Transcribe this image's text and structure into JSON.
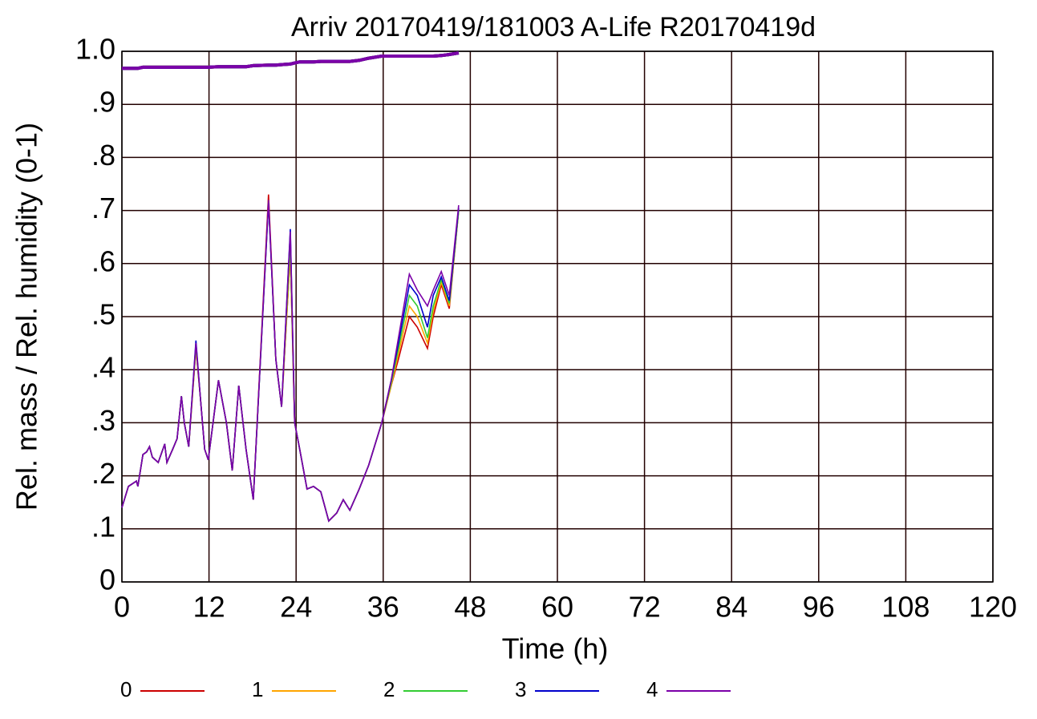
{
  "chart_data": {
    "type": "line",
    "title": "Arriv 20170419/181003 A-Life R20170419d",
    "x_label": "Time (h)",
    "y_label": "Rel. mass / Rel. humidity (0-1)",
    "xlim": [
      0,
      120
    ],
    "xticks": [
      0,
      12,
      24,
      36,
      48,
      60,
      72,
      84,
      96,
      108,
      120
    ],
    "ylim": [
      0,
      1
    ],
    "yticks": [
      0,
      {
        "value": 0.1,
        "label": ".1"
      },
      {
        "value": 0.2,
        "label": ".2"
      },
      {
        "value": 0.3,
        "label": ".3"
      },
      {
        "value": 0.4,
        "label": ".4"
      },
      {
        "value": 0.5,
        "label": ".5"
      },
      {
        "value": 0.6,
        "label": ".6"
      },
      {
        "value": 0.7,
        "label": ".7"
      },
      {
        "value": 0.8,
        "label": ".8"
      },
      {
        "value": 0.9,
        "label": ".9"
      },
      {
        "value": 1.0,
        "label": "1.0"
      }
    ],
    "grid": true,
    "legend": "bottom",
    "x": [
      0,
      0.9,
      2,
      2.2,
      2.9,
      3.4,
      3.8,
      4.2,
      5,
      5.9,
      6.2,
      7,
      7.6,
      8.2,
      8.6,
      9.2,
      10.2,
      10.8,
      11.4,
      11.9,
      13.3,
      14.4,
      15.2,
      16.1,
      17.1,
      18.1,
      20.2,
      21.2,
      22,
      23.2,
      23.8,
      24.5,
      25.5,
      26.4,
      27.4,
      28.5,
      29.6,
      30.5,
      31.4,
      32.7,
      34,
      35.8,
      37.1,
      38.1,
      39.6,
      40.7,
      42.1,
      42.9,
      44,
      45.1,
      46.4
    ],
    "series": [
      {
        "name": "0",
        "color": "#cc0000",
        "values": [
          0.14,
          0.18,
          0.19,
          0.18,
          0.24,
          0.245,
          0.255,
          0.235,
          0.225,
          0.26,
          0.225,
          0.25,
          0.27,
          0.35,
          0.3,
          0.255,
          0.44,
          0.35,
          0.25,
          0.23,
          0.38,
          0.3,
          0.21,
          0.37,
          0.25,
          0.155,
          0.73,
          0.42,
          0.33,
          0.62,
          0.3,
          0.25,
          0.175,
          0.18,
          0.17,
          0.115,
          0.13,
          0.155,
          0.135,
          0.175,
          0.22,
          0.3,
          0.37,
          0.42,
          0.5,
          0.48,
          0.44,
          0.5,
          0.56,
          0.515,
          0.7
        ],
        "mass": [
          0.968,
          0.968,
          0.968,
          0.968,
          0.97,
          0.97,
          0.97,
          0.97,
          0.97,
          0.97,
          0.97,
          0.97,
          0.97,
          0.97,
          0.97,
          0.97,
          0.97,
          0.97,
          0.97,
          0.97,
          0.971,
          0.971,
          0.971,
          0.971,
          0.971,
          0.973,
          0.974,
          0.974,
          0.975,
          0.976,
          0.978,
          0.98,
          0.98,
          0.98,
          0.981,
          0.981,
          0.981,
          0.981,
          0.981,
          0.983,
          0.987,
          0.991,
          0.991,
          0.991,
          0.991,
          0.991,
          0.991,
          0.991,
          0.992,
          0.994,
          0.997
        ]
      },
      {
        "name": "1",
        "color": "#ffa500",
        "values": [
          0.14,
          0.18,
          0.19,
          0.18,
          0.24,
          0.245,
          0.255,
          0.235,
          0.225,
          0.26,
          0.225,
          0.25,
          0.27,
          0.35,
          0.3,
          0.255,
          0.44,
          0.35,
          0.25,
          0.23,
          0.38,
          0.3,
          0.21,
          0.37,
          0.25,
          0.155,
          0.72,
          0.42,
          0.33,
          0.62,
          0.3,
          0.25,
          0.175,
          0.18,
          0.17,
          0.115,
          0.13,
          0.155,
          0.135,
          0.175,
          0.22,
          0.3,
          0.37,
          0.43,
          0.52,
          0.5,
          0.45,
          0.51,
          0.565,
          0.52,
          0.7
        ],
        "mass": [
          0.968,
          0.968,
          0.968,
          0.968,
          0.97,
          0.97,
          0.97,
          0.97,
          0.97,
          0.97,
          0.97,
          0.97,
          0.97,
          0.97,
          0.97,
          0.97,
          0.97,
          0.97,
          0.97,
          0.97,
          0.971,
          0.971,
          0.971,
          0.971,
          0.971,
          0.973,
          0.974,
          0.974,
          0.975,
          0.976,
          0.978,
          0.98,
          0.98,
          0.98,
          0.981,
          0.981,
          0.981,
          0.981,
          0.981,
          0.983,
          0.987,
          0.991,
          0.991,
          0.991,
          0.991,
          0.991,
          0.991,
          0.991,
          0.992,
          0.994,
          0.997
        ]
      },
      {
        "name": "2",
        "color": "#33cc33",
        "values": [
          0.14,
          0.18,
          0.19,
          0.18,
          0.24,
          0.245,
          0.255,
          0.235,
          0.225,
          0.26,
          0.225,
          0.25,
          0.27,
          0.35,
          0.3,
          0.255,
          0.445,
          0.35,
          0.25,
          0.23,
          0.38,
          0.3,
          0.21,
          0.37,
          0.25,
          0.155,
          0.715,
          0.42,
          0.33,
          0.64,
          0.3,
          0.25,
          0.175,
          0.18,
          0.17,
          0.115,
          0.13,
          0.155,
          0.135,
          0.175,
          0.22,
          0.3,
          0.375,
          0.44,
          0.54,
          0.52,
          0.46,
          0.52,
          0.57,
          0.525,
          0.7
        ],
        "mass": [
          0.968,
          0.968,
          0.968,
          0.968,
          0.97,
          0.97,
          0.97,
          0.97,
          0.97,
          0.97,
          0.97,
          0.97,
          0.97,
          0.97,
          0.97,
          0.97,
          0.97,
          0.97,
          0.97,
          0.97,
          0.971,
          0.971,
          0.971,
          0.971,
          0.971,
          0.973,
          0.974,
          0.974,
          0.975,
          0.976,
          0.978,
          0.98,
          0.98,
          0.98,
          0.981,
          0.981,
          0.981,
          0.981,
          0.981,
          0.983,
          0.987,
          0.991,
          0.991,
          0.991,
          0.991,
          0.991,
          0.991,
          0.991,
          0.992,
          0.994,
          0.997
        ]
      },
      {
        "name": "3",
        "color": "#0000cc",
        "values": [
          0.14,
          0.18,
          0.19,
          0.18,
          0.24,
          0.245,
          0.255,
          0.235,
          0.225,
          0.26,
          0.225,
          0.25,
          0.27,
          0.35,
          0.3,
          0.255,
          0.455,
          0.35,
          0.25,
          0.23,
          0.38,
          0.3,
          0.21,
          0.37,
          0.25,
          0.155,
          0.715,
          0.42,
          0.33,
          0.665,
          0.3,
          0.25,
          0.175,
          0.18,
          0.17,
          0.115,
          0.13,
          0.155,
          0.135,
          0.175,
          0.22,
          0.3,
          0.38,
          0.45,
          0.56,
          0.54,
          0.48,
          0.54,
          0.575,
          0.53,
          0.705
        ],
        "mass": [
          0.968,
          0.968,
          0.968,
          0.968,
          0.97,
          0.97,
          0.97,
          0.97,
          0.97,
          0.97,
          0.97,
          0.97,
          0.97,
          0.97,
          0.97,
          0.97,
          0.97,
          0.97,
          0.97,
          0.97,
          0.971,
          0.971,
          0.971,
          0.971,
          0.971,
          0.973,
          0.974,
          0.974,
          0.975,
          0.976,
          0.978,
          0.98,
          0.98,
          0.98,
          0.981,
          0.981,
          0.981,
          0.981,
          0.981,
          0.983,
          0.987,
          0.991,
          0.991,
          0.991,
          0.991,
          0.991,
          0.991,
          0.991,
          0.992,
          0.994,
          0.997
        ]
      },
      {
        "name": "4",
        "color": "#7b00a8",
        "values": [
          0.14,
          0.18,
          0.19,
          0.18,
          0.24,
          0.245,
          0.255,
          0.235,
          0.225,
          0.26,
          0.225,
          0.25,
          0.27,
          0.35,
          0.3,
          0.255,
          0.45,
          0.35,
          0.25,
          0.23,
          0.38,
          0.3,
          0.21,
          0.37,
          0.25,
          0.155,
          0.72,
          0.42,
          0.33,
          0.66,
          0.3,
          0.25,
          0.175,
          0.18,
          0.17,
          0.115,
          0.13,
          0.155,
          0.135,
          0.175,
          0.22,
          0.3,
          0.38,
          0.46,
          0.58,
          0.55,
          0.52,
          0.55,
          0.585,
          0.54,
          0.71
        ],
        "mass": [
          0.968,
          0.968,
          0.968,
          0.968,
          0.97,
          0.97,
          0.97,
          0.97,
          0.97,
          0.97,
          0.97,
          0.97,
          0.97,
          0.97,
          0.97,
          0.97,
          0.97,
          0.97,
          0.97,
          0.97,
          0.971,
          0.971,
          0.971,
          0.971,
          0.971,
          0.973,
          0.974,
          0.974,
          0.975,
          0.976,
          0.978,
          0.98,
          0.98,
          0.98,
          0.981,
          0.981,
          0.981,
          0.981,
          0.981,
          0.983,
          0.987,
          0.991,
          0.991,
          0.991,
          0.991,
          0.991,
          0.991,
          0.991,
          0.992,
          0.994,
          0.997
        ]
      }
    ]
  }
}
